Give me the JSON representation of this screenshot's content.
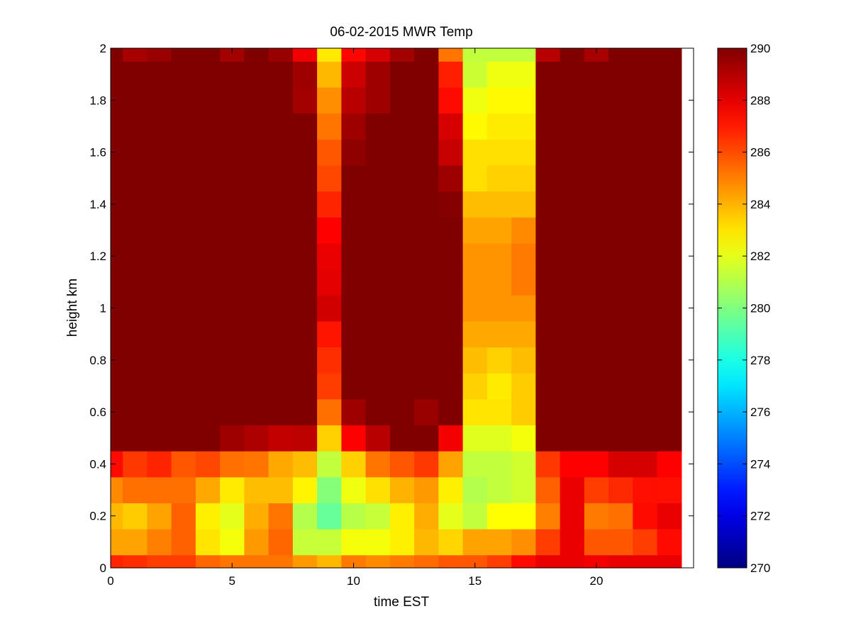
{
  "chart_data": {
    "type": "heatmap",
    "title": "06-02-2015 MWR Temp",
    "xlabel": "time EST",
    "ylabel": "height km",
    "xlim": [
      0,
      24
    ],
    "ylim": [
      0,
      2
    ],
    "xticks": [
      0,
      5,
      10,
      15,
      20
    ],
    "yticks": [
      0,
      0.2,
      0.4,
      0.6,
      0.8,
      1,
      1.2,
      1.4,
      1.6,
      1.8,
      2
    ],
    "colorbar": {
      "colormap": "jet",
      "min": 270,
      "max": 290,
      "ticks": [
        270,
        272,
        274,
        276,
        278,
        280,
        282,
        284,
        286,
        288,
        290
      ]
    },
    "grid": false,
    "x_columns": [
      0,
      1,
      2,
      3,
      4,
      5,
      6,
      7,
      8,
      9,
      10,
      11,
      12,
      13,
      14,
      15,
      16,
      17,
      18,
      19,
      20,
      21,
      22,
      23
    ],
    "y_rows_km": [
      0,
      0.1,
      0.2,
      0.3,
      0.4,
      0.5,
      0.6,
      0.7,
      0.8,
      0.9,
      1.0,
      1.1,
      1.2,
      1.3,
      1.4,
      1.5,
      1.6,
      1.7,
      1.8,
      1.9,
      2.0
    ],
    "values_K": [
      [
        286.8,
        286.6,
        286.3,
        286.3,
        285.5,
        285.2,
        285.2,
        285.2,
        284.5,
        283.9,
        285.1,
        284.8,
        285.1,
        285.4,
        285.8,
        285.8,
        286.3,
        287.3,
        287.9,
        287.9,
        287.7,
        287.9,
        287.9,
        287.9
      ],
      [
        284.3,
        284.3,
        285.0,
        285.6,
        283.0,
        282.3,
        284.5,
        285.5,
        281.4,
        281.4,
        282.3,
        282.3,
        282.8,
        283.9,
        283.3,
        284.3,
        284.3,
        284.7,
        286.3,
        287.9,
        285.8,
        285.8,
        286.3,
        287.3
      ],
      [
        283.9,
        283.5,
        284.3,
        285.6,
        282.8,
        282.0,
        284.1,
        285.2,
        281.0,
        279.5,
        281.1,
        281.4,
        282.8,
        284.1,
        282.0,
        281.3,
        282.5,
        282.5,
        285.0,
        287.9,
        285.1,
        285.3,
        287.3,
        287.9
      ],
      [
        284.8,
        285.3,
        285.3,
        285.3,
        284.2,
        282.9,
        283.8,
        283.8,
        282.7,
        280.1,
        282.2,
        283.1,
        284.0,
        284.5,
        282.8,
        281.0,
        281.3,
        281.6,
        285.6,
        287.9,
        286.3,
        286.7,
        287.2,
        287.2
      ],
      [
        287.3,
        286.4,
        286.8,
        285.8,
        286.1,
        285.3,
        285.2,
        284.2,
        283.8,
        281.3,
        283.4,
        285.2,
        285.8,
        286.4,
        284.3,
        281.3,
        281.3,
        281.6,
        286.4,
        287.5,
        287.5,
        288.3,
        288.3,
        287.5
      ],
      [
        290.0,
        290.0,
        290.0,
        290.0,
        290.0,
        289.4,
        289.1,
        288.7,
        288.8,
        283.4,
        287.5,
        288.9,
        290.0,
        290.0,
        287.7,
        281.9,
        281.9,
        282.3,
        290.0,
        290.0,
        290.0,
        290.0,
        290.0,
        290.0
      ],
      [
        290.0,
        290.0,
        290.0,
        290.0,
        290.0,
        290.0,
        290.0,
        290.0,
        290.0,
        285.3,
        289.4,
        290.0,
        290.0,
        289.5,
        290.0,
        283.0,
        283.0,
        283.5,
        290.0,
        290.0,
        290.0,
        290.0,
        290.0,
        290.0
      ],
      [
        290.0,
        290.0,
        290.0,
        290.0,
        290.0,
        290.0,
        290.0,
        290.0,
        290.0,
        286.3,
        290.0,
        290.0,
        290.0,
        290.0,
        290.0,
        283.4,
        282.9,
        283.5,
        290.0,
        290.0,
        290.0,
        290.0,
        290.0,
        290.0
      ],
      [
        290.0,
        290.0,
        290.0,
        290.0,
        290.0,
        290.0,
        290.0,
        290.0,
        290.0,
        286.6,
        290.0,
        290.0,
        290.0,
        290.0,
        290.0,
        283.8,
        283.4,
        283.8,
        290.0,
        290.0,
        290.0,
        290.0,
        290.0,
        290.0
      ],
      [
        290.0,
        290.0,
        290.0,
        290.0,
        290.0,
        290.0,
        290.0,
        290.0,
        290.0,
        287.1,
        290.0,
        290.0,
        290.0,
        290.0,
        290.0,
        284.2,
        284.2,
        284.2,
        290.0,
        290.0,
        290.0,
        290.0,
        290.0,
        290.0
      ],
      [
        290.0,
        290.0,
        290.0,
        290.0,
        290.0,
        290.0,
        290.0,
        290.0,
        290.0,
        288.4,
        290.0,
        290.0,
        290.0,
        290.0,
        290.0,
        284.6,
        284.6,
        284.6,
        290.0,
        290.0,
        290.0,
        290.0,
        290.0,
        290.0
      ],
      [
        290.0,
        290.0,
        290.0,
        290.0,
        290.0,
        290.0,
        290.0,
        290.0,
        290.0,
        288.0,
        290.0,
        290.0,
        290.0,
        290.0,
        290.0,
        284.6,
        284.6,
        285.1,
        290.0,
        290.0,
        290.0,
        290.0,
        290.0,
        290.0
      ],
      [
        290.0,
        290.0,
        290.0,
        290.0,
        290.0,
        290.0,
        290.0,
        290.0,
        290.0,
        287.9,
        290.0,
        290.0,
        290.0,
        290.0,
        290.0,
        284.6,
        284.6,
        285.1,
        290.0,
        290.0,
        290.0,
        290.0,
        290.0,
        290.0
      ],
      [
        290.0,
        290.0,
        290.0,
        290.0,
        290.0,
        290.0,
        290.0,
        290.0,
        290.0,
        287.5,
        290.0,
        290.0,
        290.0,
        290.0,
        290.0,
        284.3,
        284.3,
        284.8,
        290.0,
        290.0,
        290.0,
        290.0,
        290.0,
        290.0
      ],
      [
        290.0,
        290.0,
        290.0,
        290.0,
        290.0,
        290.0,
        290.0,
        290.0,
        290.0,
        286.8,
        290.0,
        290.0,
        290.0,
        290.0,
        289.9,
        283.8,
        283.8,
        283.8,
        290.0,
        290.0,
        290.0,
        290.0,
        290.0,
        290.0
      ],
      [
        290.0,
        290.0,
        290.0,
        290.0,
        290.0,
        290.0,
        290.0,
        290.0,
        290.0,
        286.1,
        290.0,
        290.0,
        290.0,
        290.0,
        289.4,
        283.1,
        283.4,
        283.4,
        290.0,
        290.0,
        290.0,
        290.0,
        290.0,
        290.0
      ],
      [
        290.0,
        290.0,
        290.0,
        290.0,
        290.0,
        290.0,
        290.0,
        290.0,
        290.0,
        285.8,
        289.7,
        290.0,
        290.0,
        290.0,
        288.6,
        283.1,
        283.1,
        283.1,
        290.0,
        290.0,
        290.0,
        290.0,
        290.0,
        290.0
      ],
      [
        290.0,
        290.0,
        290.0,
        290.0,
        290.0,
        290.0,
        290.0,
        290.0,
        290.0,
        285.2,
        289.4,
        290.0,
        290.0,
        290.0,
        288.3,
        282.6,
        282.9,
        282.9,
        290.0,
        290.0,
        290.0,
        290.0,
        290.0,
        290.0
      ],
      [
        290.0,
        290.0,
        290.0,
        290.0,
        290.0,
        290.0,
        290.0,
        290.0,
        289.3,
        284.7,
        288.9,
        289.4,
        290.0,
        290.0,
        287.3,
        282.2,
        282.6,
        282.6,
        290.0,
        290.0,
        290.0,
        290.0,
        290.0,
        290.0
      ],
      [
        290.0,
        290.0,
        290.0,
        290.0,
        290.0,
        290.0,
        290.0,
        290.0,
        289.4,
        283.9,
        288.5,
        289.4,
        290.0,
        290.0,
        286.9,
        281.5,
        282.2,
        282.2,
        290.0,
        290.0,
        290.0,
        290.0,
        290.0,
        290.0
      ],
      [
        290.0,
        289.2,
        289.5,
        290.0,
        290.0,
        289.3,
        290.0,
        289.5,
        287.8,
        282.9,
        287.4,
        288.3,
        289.3,
        290.0,
        285.2,
        281.3,
        281.3,
        281.3,
        288.9,
        290.0,
        289.2,
        290.0,
        290.0,
        290.0
      ]
    ]
  }
}
